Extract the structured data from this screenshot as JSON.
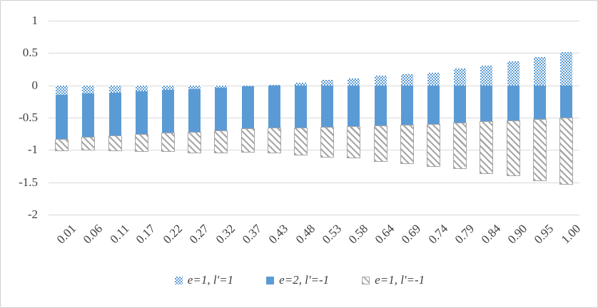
{
  "figure": {
    "kind": "excel-style stacked bar chart",
    "title": ""
  },
  "colors": {
    "bar_blue": "#5b9bd5",
    "hatch_gray": "#a6a6a6",
    "gridline": "#d9d9d9",
    "frame_border": "#cfcfcf",
    "text": "#404040"
  },
  "chart_data": {
    "type": "bar",
    "stacked": true,
    "title": "",
    "xlabel": "",
    "ylabel": "",
    "grid": true,
    "legend_position": "bottom",
    "ylim": [
      1,
      -2
    ],
    "yticks": [
      1,
      0.5,
      0,
      -0.5,
      -1,
      -1.5,
      -2
    ],
    "ytick_labels": [
      "1",
      "0.5",
      "0",
      "-0.5",
      "-1",
      "-1.5",
      "-2"
    ],
    "categories": [
      "0.01",
      "0.06",
      "0.11",
      "0.17",
      "0.22",
      "0.27",
      "0.32",
      "0.37",
      "0.43",
      "0.48",
      "0.53",
      "0.58",
      "0.64",
      "0.69",
      "0.74",
      "0.79",
      "0.84",
      "0.90",
      "0.95",
      "1.00"
    ],
    "series": [
      {
        "name": "e=1, l'=1",
        "pattern": "blue-white-checker",
        "values": [
          -0.15,
          -0.13,
          -0.11,
          -0.09,
          -0.07,
          -0.06,
          -0.04,
          -0.02,
          0.01,
          0.04,
          0.08,
          0.11,
          0.15,
          0.17,
          0.2,
          0.26,
          0.31,
          0.37,
          0.44,
          0.51
        ]
      },
      {
        "name": "e=2, l'=-1",
        "pattern": "solid-blue",
        "values": [
          -0.69,
          -0.68,
          -0.68,
          -0.68,
          -0.67,
          -0.67,
          -0.67,
          -0.66,
          -0.66,
          -0.66,
          -0.65,
          -0.64,
          -0.63,
          -0.62,
          -0.61,
          -0.59,
          -0.57,
          -0.56,
          -0.53,
          -0.51
        ]
      },
      {
        "name": "e=1, l'=-1",
        "pattern": "gray-diagonal-hatch",
        "values": [
          -0.17,
          -0.19,
          -0.22,
          -0.25,
          -0.28,
          -0.31,
          -0.33,
          -0.35,
          -0.38,
          -0.41,
          -0.46,
          -0.48,
          -0.54,
          -0.59,
          -0.64,
          -0.69,
          -0.79,
          -0.83,
          -0.94,
          -1.02
        ]
      }
    ]
  }
}
